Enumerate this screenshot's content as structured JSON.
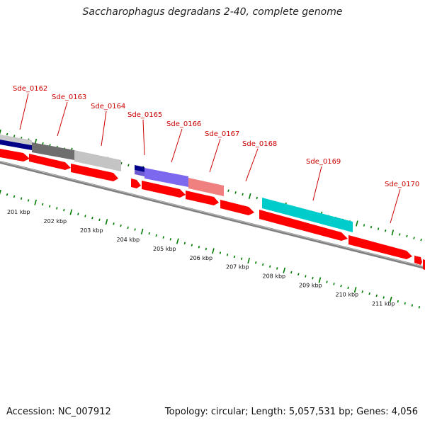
{
  "title": "Saccharophagus degradans 2-40, complete genome",
  "footer": {
    "accession": "Accession: NC_007912",
    "summary": "Topology: circular; Length: 5,057,531 bp; Genes: 4,056"
  },
  "colors": {
    "gene_label": "#cc0000",
    "cds": "#ff0000",
    "tick": "#007a00",
    "backbone": "#808080"
  },
  "genes": [
    {
      "label": "Sde_0162"
    },
    {
      "label": "Sde_0163"
    },
    {
      "label": "Sde_0164"
    },
    {
      "label": "Sde_0165"
    },
    {
      "label": "Sde_0166"
    },
    {
      "label": "Sde_0167"
    },
    {
      "label": "Sde_0168"
    },
    {
      "label": "Sde_0169"
    },
    {
      "label": "Sde_0170"
    }
  ],
  "scale": [
    {
      "label": "201 kbp"
    },
    {
      "label": "202 kbp"
    },
    {
      "label": "203 kbp"
    },
    {
      "label": "204 kbp"
    },
    {
      "label": "205 kbp"
    },
    {
      "label": "206 kbp"
    },
    {
      "label": "207 kbp"
    },
    {
      "label": "208 kbp"
    },
    {
      "label": "209 kbp"
    },
    {
      "label": "210 kbp"
    },
    {
      "label": "211 kbp"
    }
  ]
}
